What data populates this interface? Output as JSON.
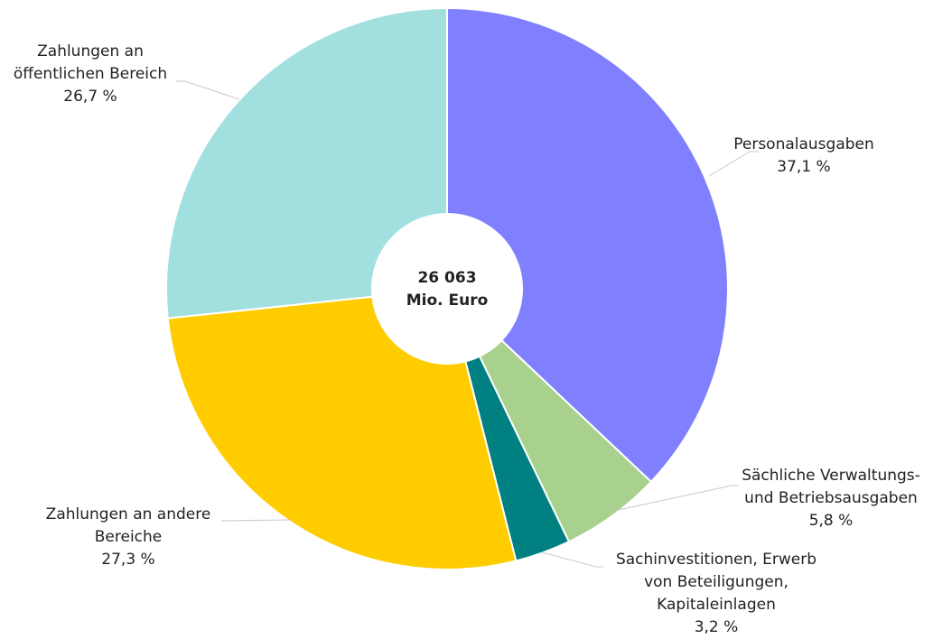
{
  "chart_data": {
    "type": "donut",
    "categories": [
      "Personalausgaben",
      "Sächliche Verwaltungs-\nund Betriebsausgaben",
      "Sachinvestitionen, Erwerb\nvon Beteiligungen,\nKapitaleinlagen",
      "Zahlungen an andere\nBereiche",
      "Zahlungen an\nöffentlichen Bereich"
    ],
    "values": [
      37.1,
      5.8,
      3.2,
      27.3,
      26.7
    ],
    "value_labels": [
      "37,1 %",
      "5,8 %",
      "3,2 %",
      "27,3 %",
      "26,7 %"
    ],
    "colors": [
      "#8080ff",
      "#a9d18e",
      "#008080",
      "#ffcc00",
      "#a2e0e0"
    ],
    "total": {
      "value": 26063,
      "label": "26 063"
    },
    "total_unit": "Mio. Euro"
  }
}
